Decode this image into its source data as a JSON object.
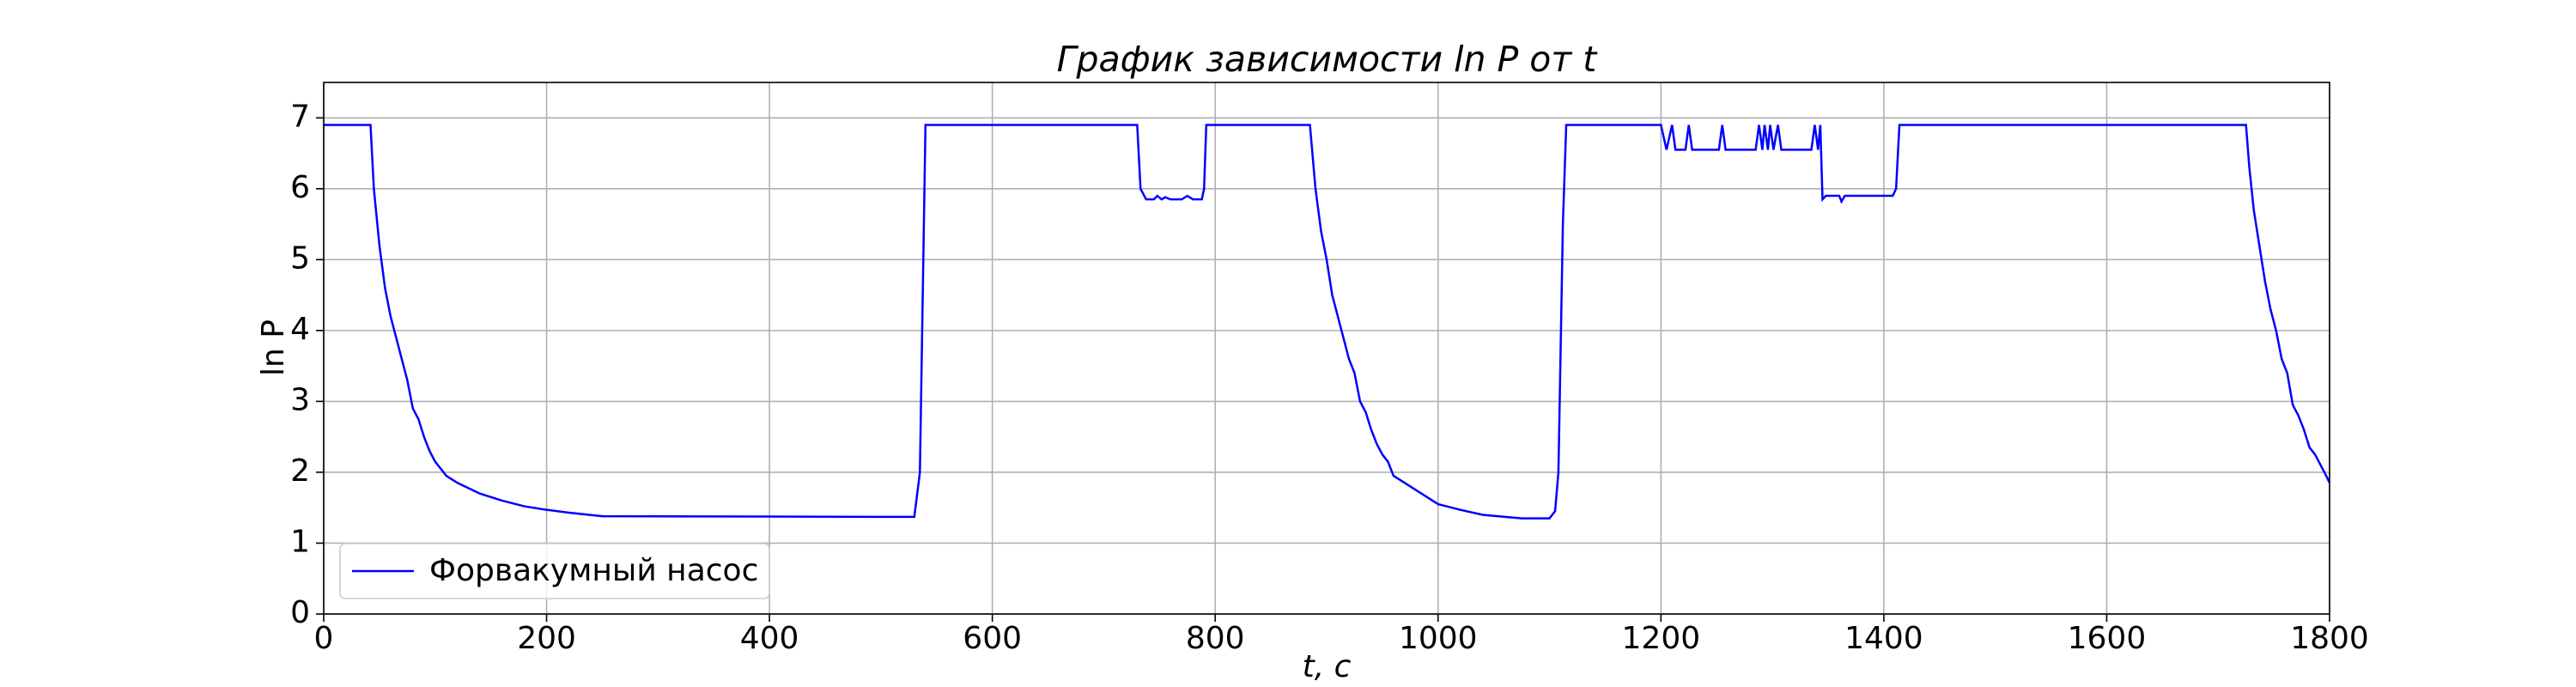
{
  "chart_data": {
    "type": "line",
    "title": "График зависимости ln P от t",
    "x_label": "t, c",
    "y_label": "ln P",
    "x": [
      0,
      42,
      45,
      50,
      55,
      60,
      65,
      70,
      75,
      80,
      85,
      90,
      95,
      100,
      110,
      120,
      140,
      160,
      180,
      200,
      220,
      250,
      530,
      535,
      540,
      730,
      733,
      738,
      745,
      748,
      752,
      755,
      760,
      770,
      775,
      780,
      788,
      790,
      792,
      885,
      890,
      895,
      900,
      905,
      910,
      915,
      920,
      925,
      930,
      935,
      940,
      945,
      950,
      955,
      960,
      970,
      980,
      990,
      1000,
      1020,
      1040,
      1060,
      1075,
      1100,
      1105,
      1108,
      1112,
      1115,
      1200,
      1205,
      1210,
      1213,
      1222,
      1225,
      1228,
      1252,
      1255,
      1258,
      1285,
      1288,
      1291,
      1293,
      1296,
      1298,
      1301,
      1305,
      1308,
      1335,
      1338,
      1341,
      1343,
      1345,
      1348,
      1360,
      1362,
      1365,
      1408,
      1411,
      1414,
      1725,
      1728,
      1732,
      1737,
      1742,
      1747,
      1752,
      1757,
      1762,
      1767,
      1772,
      1777,
      1782,
      1787,
      1792,
      1797,
      1800
    ],
    "series": [
      {
        "name": "Форвакумный насос",
        "color": "#0000ff",
        "values": [
          6.9,
          6.9,
          6.0,
          5.2,
          4.6,
          4.2,
          3.9,
          3.6,
          3.3,
          2.9,
          2.75,
          2.5,
          2.3,
          2.15,
          1.95,
          1.85,
          1.7,
          1.6,
          1.52,
          1.47,
          1.43,
          1.38,
          1.37,
          2.0,
          6.9,
          6.9,
          6.0,
          5.85,
          5.85,
          5.9,
          5.85,
          5.88,
          5.85,
          5.85,
          5.9,
          5.85,
          5.85,
          6.0,
          6.9,
          6.9,
          6.0,
          5.4,
          5.0,
          4.5,
          4.2,
          3.9,
          3.6,
          3.4,
          3.0,
          2.85,
          2.6,
          2.4,
          2.25,
          2.15,
          1.95,
          1.85,
          1.75,
          1.65,
          1.55,
          1.47,
          1.4,
          1.37,
          1.35,
          1.35,
          1.45,
          2.0,
          5.5,
          6.9,
          6.9,
          6.55,
          6.9,
          6.55,
          6.55,
          6.9,
          6.55,
          6.55,
          6.9,
          6.55,
          6.55,
          6.9,
          6.55,
          6.9,
          6.55,
          6.9,
          6.55,
          6.9,
          6.55,
          6.55,
          6.9,
          6.55,
          6.9,
          5.85,
          5.9,
          5.9,
          5.82,
          5.9,
          5.9,
          6.0,
          6.9,
          6.9,
          6.3,
          5.7,
          5.2,
          4.7,
          4.3,
          4.0,
          3.6,
          3.4,
          2.95,
          2.8,
          2.6,
          2.35,
          2.25,
          2.1,
          1.95,
          1.85
        ]
      }
    ],
    "xlim": [
      0,
      1800
    ],
    "xticks": [
      0,
      200,
      400,
      600,
      800,
      1000,
      1200,
      1400,
      1600,
      1800
    ],
    "ylim": [
      0,
      7.5
    ],
    "yticks": [
      0,
      1,
      2,
      3,
      4,
      5,
      6,
      7
    ],
    "grid": true,
    "legend": "lower left"
  }
}
